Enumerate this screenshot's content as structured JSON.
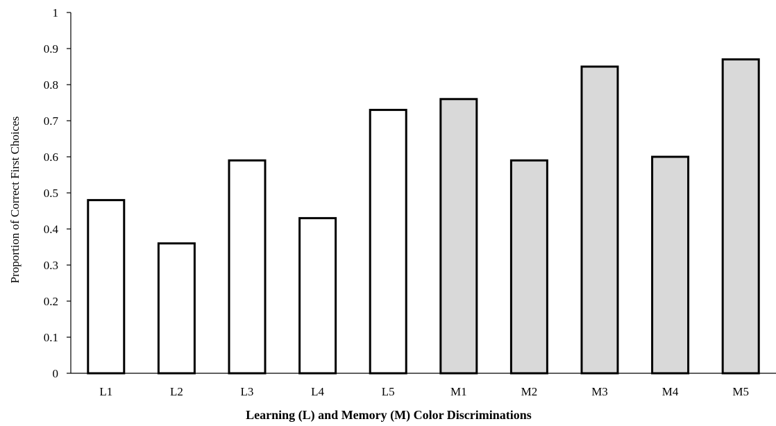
{
  "chart_data": {
    "type": "bar",
    "categories": [
      "L1",
      "L2",
      "L3",
      "L4",
      "L5",
      "M1",
      "M2",
      "M3",
      "M4",
      "M5"
    ],
    "values": [
      0.48,
      0.36,
      0.59,
      0.43,
      0.73,
      0.76,
      0.59,
      0.85,
      0.6,
      0.87
    ],
    "groups": [
      "L",
      "L",
      "L",
      "L",
      "L",
      "M",
      "M",
      "M",
      "M",
      "M"
    ],
    "group_colors": {
      "L": "#ffffff",
      "M": "#d9d9d9"
    },
    "bar_stroke": "#000000",
    "title": "",
    "xlabel": "Learning (L) and Memory (M) Color Discriminations",
    "ylabel": "Proportion of Correct First Choices",
    "ylim": [
      0,
      1
    ],
    "yticks": [
      "0",
      "0.1",
      "0.2",
      "0.3",
      "0.4",
      "0.5",
      "0.6",
      "0.7",
      "0.8",
      "0.9",
      "1"
    ],
    "grid": false,
    "legend": "none"
  }
}
